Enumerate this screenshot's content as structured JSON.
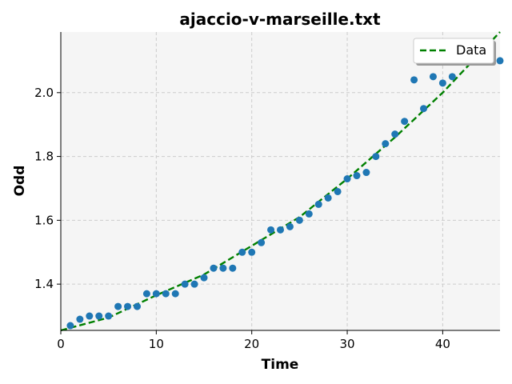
{
  "chart_data": {
    "type": "scatter",
    "title": "ajaccio-v-marseille.txt",
    "xlabel": "Time",
    "ylabel": "Odd",
    "xlim": [
      0,
      46
    ],
    "ylim": [
      1.255,
      2.19
    ],
    "xticks": [
      "0",
      "10",
      "20",
      "30",
      "40"
    ],
    "yticks": [
      "1.4",
      "1.6",
      "1.8",
      "2.0"
    ],
    "grid": true,
    "legend": {
      "position": "top-right",
      "entries": [
        "Data"
      ]
    },
    "points": {
      "color": "#1f77b4",
      "x": [
        1,
        2,
        3,
        4,
        5,
        6,
        7,
        8,
        9,
        10,
        11,
        12,
        13,
        14,
        15,
        16,
        17,
        18,
        19,
        20,
        21,
        22,
        23,
        24,
        25,
        26,
        27,
        28,
        29,
        30,
        31,
        32,
        33,
        34,
        35,
        36,
        37,
        38,
        39,
        40,
        41,
        46
      ],
      "y": [
        1.27,
        1.29,
        1.3,
        1.3,
        1.3,
        1.33,
        1.33,
        1.33,
        1.37,
        1.37,
        1.37,
        1.37,
        1.4,
        1.4,
        1.42,
        1.45,
        1.45,
        1.45,
        1.5,
        1.5,
        1.53,
        1.57,
        1.57,
        1.58,
        1.6,
        1.62,
        1.65,
        1.67,
        1.69,
        1.73,
        1.74,
        1.75,
        1.8,
        1.84,
        1.87,
        1.91,
        2.04,
        1.95,
        2.05,
        2.03,
        2.05,
        2.1
      ]
    },
    "fit_line": {
      "name": "Data",
      "color": "#008000",
      "style": "dashed",
      "x": [
        0,
        5,
        10,
        15,
        20,
        25,
        30,
        35,
        40,
        46
      ],
      "y": [
        1.255,
        1.295,
        1.365,
        1.43,
        1.52,
        1.61,
        1.73,
        1.86,
        2.0,
        2.19
      ]
    },
    "colors": {
      "plot_background": "#f5f5f5",
      "grid": "#cccccc"
    }
  }
}
